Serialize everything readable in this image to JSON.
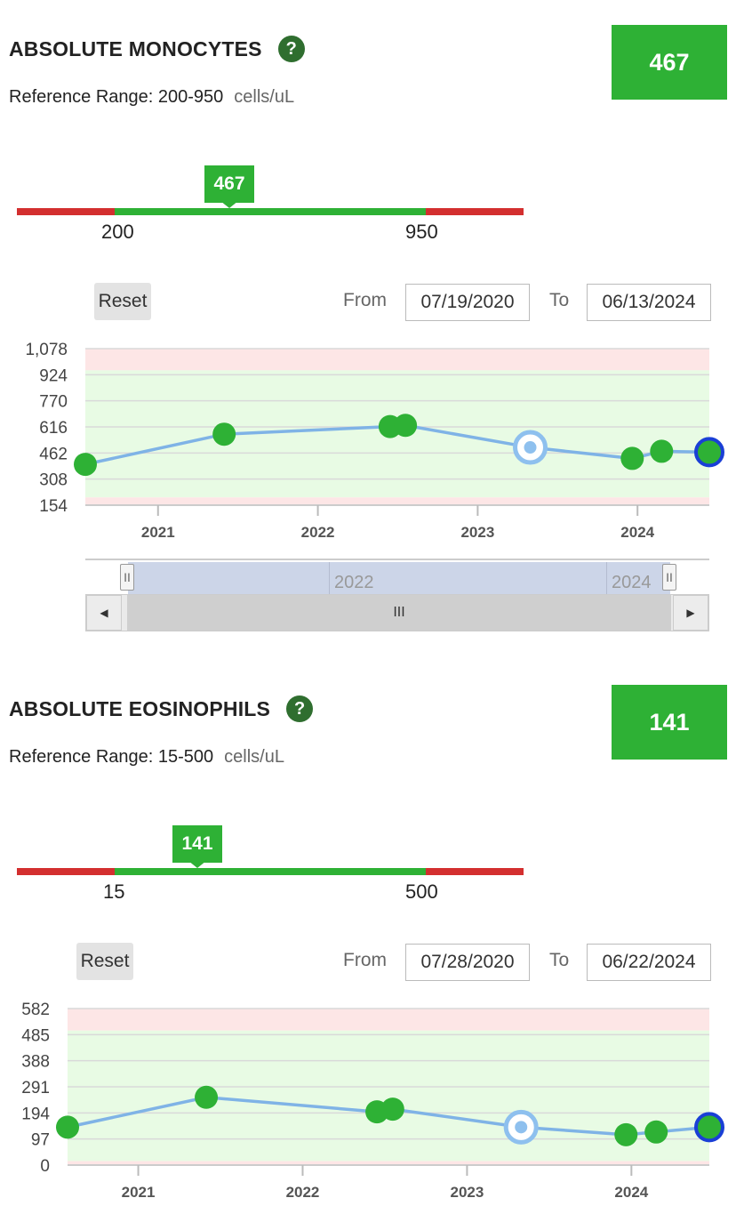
{
  "colors": {
    "accent_green": "#2eb135",
    "out_of_range_red": "#d32f2f",
    "line_blue": "#7fb3e6",
    "highlight_blue": "#1a3fd6",
    "selected_light_blue": "#8ec0ee"
  },
  "panels": [
    {
      "title": "ABSOLUTE MONOCYTES",
      "help_icon": "question-mark-icon",
      "help_glyph": "?",
      "reference_label": "Reference Range: 200-950",
      "units": "cells/uL",
      "current_value": "467",
      "range_low": "200",
      "range_high": "950",
      "reset_label": "Reset",
      "from_label": "From",
      "to_label": "To",
      "from_date": "07/19/2020",
      "to_date": "06/13/2024",
      "navigator": {
        "years": [
          "2022",
          "2024"
        ],
        "thumb_glyph": "III",
        "handle_glyph": "II",
        "left_arrow": "◀",
        "right_arrow": "▶"
      }
    },
    {
      "title": "ABSOLUTE EOSINOPHILS",
      "help_icon": "question-mark-icon",
      "help_glyph": "?",
      "reference_label": "Reference Range: 15-500",
      "units": "cells/uL",
      "current_value": "141",
      "range_low": "15",
      "range_high": "500",
      "reset_label": "Reset",
      "from_label": "From",
      "to_label": "To",
      "from_date": "07/28/2020",
      "to_date": "06/22/2024"
    }
  ],
  "chart_data": [
    {
      "type": "line",
      "y_ticks": [
        "1,078",
        "924",
        "770",
        "616",
        "462",
        "308",
        "154"
      ],
      "ylim": [
        154,
        1078
      ],
      "normal_range": [
        200,
        950
      ],
      "x_ticks": [
        "2021",
        "2022",
        "2023",
        "2024"
      ],
      "x": [
        "2020-07-19",
        "2021-06-01",
        "2022-06-15",
        "2022-07-20",
        "2023-05-01",
        "2023-12-20",
        "2024-02-25",
        "2024-06-13"
      ],
      "values": [
        395,
        573,
        618,
        625,
        495,
        430,
        472,
        467
      ],
      "highlighted_point_index": 4,
      "latest_point_index": 7
    },
    {
      "type": "line",
      "y_ticks": [
        "582",
        "485",
        "388",
        "291",
        "194",
        "97",
        "0"
      ],
      "ylim": [
        0,
        582
      ],
      "normal_range": [
        15,
        500
      ],
      "x_ticks": [
        "2021",
        "2022",
        "2023",
        "2024"
      ],
      "x": [
        "2020-07-28",
        "2021-06-01",
        "2022-06-15",
        "2022-07-20",
        "2023-05-01",
        "2023-12-20",
        "2024-02-25",
        "2024-06-22"
      ],
      "values": [
        141,
        252,
        198,
        208,
        141,
        113,
        123,
        141
      ],
      "highlighted_point_index": 4,
      "latest_point_index": 7
    }
  ]
}
